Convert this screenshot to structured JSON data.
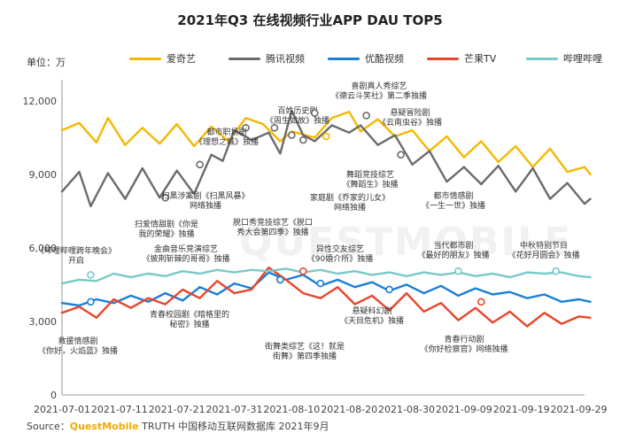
{
  "title": "2021年Q3 在线视频行业APP DAU TOP5",
  "unit_label": "单位：万",
  "source": {
    "prefix": "Source：",
    "brand": "QuestMobile",
    "suffix": " TRUTH 中国移动互联网数据库 2021年9月"
  },
  "watermark": "QUESTMOBILE",
  "colors": {
    "iqiyi": "#f5b800",
    "tencent": "#6b6b6b",
    "youku": "#1a7fd6",
    "mango": "#e8452c",
    "bilibili": "#79c9c6"
  },
  "chart_data": {
    "type": "line",
    "title": "2021年Q3 在线视频行业APP DAU TOP5",
    "xlabel": "",
    "ylabel": "单位：万",
    "ylim": [
      0,
      12500
    ],
    "yticks": [
      0,
      3000,
      6000,
      9000,
      12000
    ],
    "ytick_labels": [
      "0",
      "3,000",
      "6,000",
      "9,000",
      "12,000"
    ],
    "x_start": "2021-07-01",
    "x_end": "2021-09-30",
    "xtick_labels": [
      "2021-07-01",
      "2021-07-11",
      "2021-07-21",
      "2021-07-31",
      "2021-08-10",
      "2021-08-20",
      "2021-08-30",
      "2021-09-09",
      "2021-09-19",
      "2021-09-29"
    ],
    "legend_position": "top",
    "series": [
      {
        "name": "爱奇艺",
        "color_key": "iqiyi",
        "values": [
          [
            0,
            10800
          ],
          [
            3,
            11100
          ],
          [
            6,
            10300
          ],
          [
            8,
            11300
          ],
          [
            11,
            10200
          ],
          [
            14,
            10900
          ],
          [
            17,
            10250
          ],
          [
            20,
            11050
          ],
          [
            23,
            10150
          ],
          [
            26,
            10950
          ],
          [
            29,
            10350
          ],
          [
            32,
            11300
          ],
          [
            35,
            11050
          ],
          [
            38,
            10350
          ],
          [
            40,
            10750
          ],
          [
            44,
            10500
          ],
          [
            47,
            11300
          ],
          [
            50,
            11550
          ],
          [
            52,
            10750
          ],
          [
            55,
            11250
          ],
          [
            58,
            10550
          ],
          [
            61,
            10800
          ],
          [
            64,
            9950
          ],
          [
            67,
            10550
          ],
          [
            70,
            9700
          ],
          [
            73,
            10350
          ],
          [
            76,
            9500
          ],
          [
            79,
            10150
          ],
          [
            82,
            9300
          ],
          [
            85,
            10050
          ],
          [
            88,
            9100
          ],
          [
            91,
            9300
          ],
          [
            92,
            9000
          ]
        ]
      },
      {
        "name": "腾讯视频",
        "color_key": "tencent",
        "values": [
          [
            0,
            8300
          ],
          [
            3,
            9100
          ],
          [
            5,
            7700
          ],
          [
            8,
            9050
          ],
          [
            11,
            8000
          ],
          [
            14,
            9250
          ],
          [
            17,
            8050
          ],
          [
            20,
            9150
          ],
          [
            23,
            8200
          ],
          [
            26,
            9800
          ],
          [
            28,
            9550
          ],
          [
            30,
            10800
          ],
          [
            33,
            10400
          ],
          [
            36,
            10700
          ],
          [
            38,
            9850
          ],
          [
            40,
            11600
          ],
          [
            42,
            10600
          ],
          [
            44,
            10350
          ],
          [
            47,
            11000
          ],
          [
            50,
            10700
          ],
          [
            52,
            11000
          ],
          [
            55,
            10200
          ],
          [
            58,
            10600
          ],
          [
            61,
            9400
          ],
          [
            64,
            9950
          ],
          [
            67,
            8700
          ],
          [
            70,
            9300
          ],
          [
            73,
            8600
          ],
          [
            76,
            9350
          ],
          [
            79,
            8300
          ],
          [
            82,
            9250
          ],
          [
            85,
            8000
          ],
          [
            88,
            8650
          ],
          [
            91,
            7800
          ],
          [
            92,
            8000
          ]
        ]
      },
      {
        "name": "优酷视频",
        "color_key": "youku",
        "values": [
          [
            0,
            3750
          ],
          [
            3,
            3650
          ],
          [
            6,
            3900
          ],
          [
            9,
            3750
          ],
          [
            12,
            4050
          ],
          [
            15,
            3800
          ],
          [
            18,
            4150
          ],
          [
            21,
            3850
          ],
          [
            24,
            4400
          ],
          [
            27,
            4100
          ],
          [
            30,
            4550
          ],
          [
            33,
            4350
          ],
          [
            36,
            5000
          ],
          [
            39,
            4700
          ],
          [
            42,
            4900
          ],
          [
            45,
            4450
          ],
          [
            48,
            4700
          ],
          [
            51,
            4400
          ],
          [
            54,
            4600
          ],
          [
            57,
            4250
          ],
          [
            60,
            4500
          ],
          [
            63,
            4150
          ],
          [
            66,
            4450
          ],
          [
            69,
            4050
          ],
          [
            72,
            4350
          ],
          [
            75,
            4100
          ],
          [
            78,
            4200
          ],
          [
            81,
            3950
          ],
          [
            84,
            4100
          ],
          [
            87,
            3800
          ],
          [
            90,
            3900
          ],
          [
            92,
            3800
          ]
        ]
      },
      {
        "name": "芒果TV",
        "color_key": "mango",
        "values": [
          [
            0,
            3350
          ],
          [
            3,
            3600
          ],
          [
            6,
            3150
          ],
          [
            9,
            3900
          ],
          [
            12,
            3550
          ],
          [
            15,
            3950
          ],
          [
            18,
            3700
          ],
          [
            21,
            4300
          ],
          [
            24,
            3950
          ],
          [
            27,
            4650
          ],
          [
            30,
            4150
          ],
          [
            33,
            4300
          ],
          [
            36,
            5200
          ],
          [
            39,
            4700
          ],
          [
            42,
            4150
          ],
          [
            45,
            3950
          ],
          [
            48,
            4400
          ],
          [
            51,
            3700
          ],
          [
            54,
            4050
          ],
          [
            57,
            3450
          ],
          [
            60,
            4150
          ],
          [
            63,
            3400
          ],
          [
            66,
            3750
          ],
          [
            69,
            3050
          ],
          [
            72,
            3550
          ],
          [
            75,
            2950
          ],
          [
            78,
            3400
          ],
          [
            81,
            2800
          ],
          [
            84,
            3350
          ],
          [
            87,
            2900
          ],
          [
            90,
            3200
          ],
          [
            92,
            3150
          ]
        ]
      },
      {
        "name": "哔哩哔哩",
        "color_key": "bilibili",
        "values": [
          [
            0,
            4550
          ],
          [
            3,
            4700
          ],
          [
            6,
            4650
          ],
          [
            9,
            4950
          ],
          [
            12,
            4800
          ],
          [
            15,
            4950
          ],
          [
            18,
            4850
          ],
          [
            21,
            5050
          ],
          [
            24,
            4950
          ],
          [
            27,
            5100
          ],
          [
            30,
            5000
          ],
          [
            33,
            5100
          ],
          [
            36,
            5050
          ],
          [
            39,
            5150
          ],
          [
            42,
            5000
          ],
          [
            45,
            5100
          ],
          [
            48,
            4950
          ],
          [
            51,
            5050
          ],
          [
            54,
            4900
          ],
          [
            57,
            5000
          ],
          [
            60,
            4850
          ],
          [
            63,
            5000
          ],
          [
            66,
            4900
          ],
          [
            69,
            5000
          ],
          [
            72,
            4850
          ],
          [
            75,
            4950
          ],
          [
            78,
            4800
          ],
          [
            81,
            5000
          ],
          [
            84,
            4950
          ],
          [
            87,
            5000
          ],
          [
            90,
            4850
          ],
          [
            92,
            4800
          ]
        ]
      }
    ],
    "annotations": [
      {
        "lines": [
          "《哔哩哔哩跨年晚会》",
          "开启"
        ],
        "color_key": "bilibili",
        "day": 5,
        "value": 4900
      },
      {
        "lines": [
          "救援情感剧",
          "《你好，火焰蓝》独播"
        ],
        "color_key": "youku",
        "day": 5,
        "value": 3800
      },
      {
        "lines": [
          "扫爱情甜剧《你是",
          "我的荣耀》独播"
        ],
        "color_key": "tencent",
        "day": 18,
        "value": 8050
      },
      {
        "lines": [
          "扫黑涉案剧《扫黑风暴》",
          "网络独播"
        ],
        "color_key": "tencent",
        "day": 24,
        "value": 9400
      },
      {
        "lines": [
          "都市职场剧",
          "《理想之城》独播"
        ],
        "color_key": "tencent",
        "day": 32,
        "value": 10900
      },
      {
        "lines": [
          "百姓历史剧",
          "《周生如故》独播"
        ],
        "color_key": "tencent",
        "day": 37,
        "value": 10900
      },
      {
        "lines": [
          "喜剧真人秀综艺",
          "《德云斗笑社》第二季独播"
        ],
        "color_key": "tencent",
        "day": 44,
        "value": 11500
      },
      {
        "lines": [
          "悬疑冒险剧",
          "《云南虫谷》独播"
        ],
        "color_key": "tencent",
        "day": 53,
        "value": 11400
      },
      {
        "lines": [
          "家庭剧《乔家的儿女》",
          "网络独播"
        ],
        "color_key": "tencent",
        "day": 42,
        "value": 10400
      },
      {
        "lines": [
          "舞蹈竞技综艺",
          "《舞蹈生》独播"
        ],
        "color_key": "iqiyi",
        "day": 46,
        "value": 10550
      },
      {
        "lines": [
          "脱口秀竞技综艺《脱口",
          "秀大会第四季》独播"
        ],
        "color_key": "tencent",
        "day": 40,
        "value": 10600
      },
      {
        "lines": [
          "都市情感剧",
          "《一生一世》独播"
        ],
        "color_key": "tencent",
        "day": 59,
        "value": 9800
      },
      {
        "lines": [
          "金曲音乐竞演综艺",
          "《披荆斩棘的哥哥》独播"
        ],
        "color_key": "mango",
        "day": 38,
        "value": 4700
      },
      {
        "lines": [
          "异性交友综艺",
          "《90婚介所》独播"
        ],
        "color_key": "mango",
        "day": 42,
        "value": 5050
      },
      {
        "lines": [
          "当代都市剧",
          "《最好的朋友》独播"
        ],
        "color_key": "bilibili",
        "day": 69,
        "value": 5050
      },
      {
        "lines": [
          "中秋特别节目",
          "《花好月圆会》独播"
        ],
        "color_key": "bilibili",
        "day": 86,
        "value": 5050
      },
      {
        "lines": [
          "青春校园剧《暗格里的",
          "秘密》独播"
        ],
        "color_key": "youku",
        "day": 38,
        "value": 4700
      },
      {
        "lines": [
          "街舞类综艺《这！就是",
          "街舞》第四季独播"
        ],
        "color_key": "youku",
        "day": 45,
        "value": 4550
      },
      {
        "lines": [
          "悬疑科幻剧",
          "《天目危机》独播"
        ],
        "color_key": "youku",
        "day": 57,
        "value": 4300
      },
      {
        "lines": [
          "青春行动剧",
          "《你好检察官》网络独播"
        ],
        "color_key": "mango",
        "day": 73,
        "value": 3800
      }
    ]
  }
}
